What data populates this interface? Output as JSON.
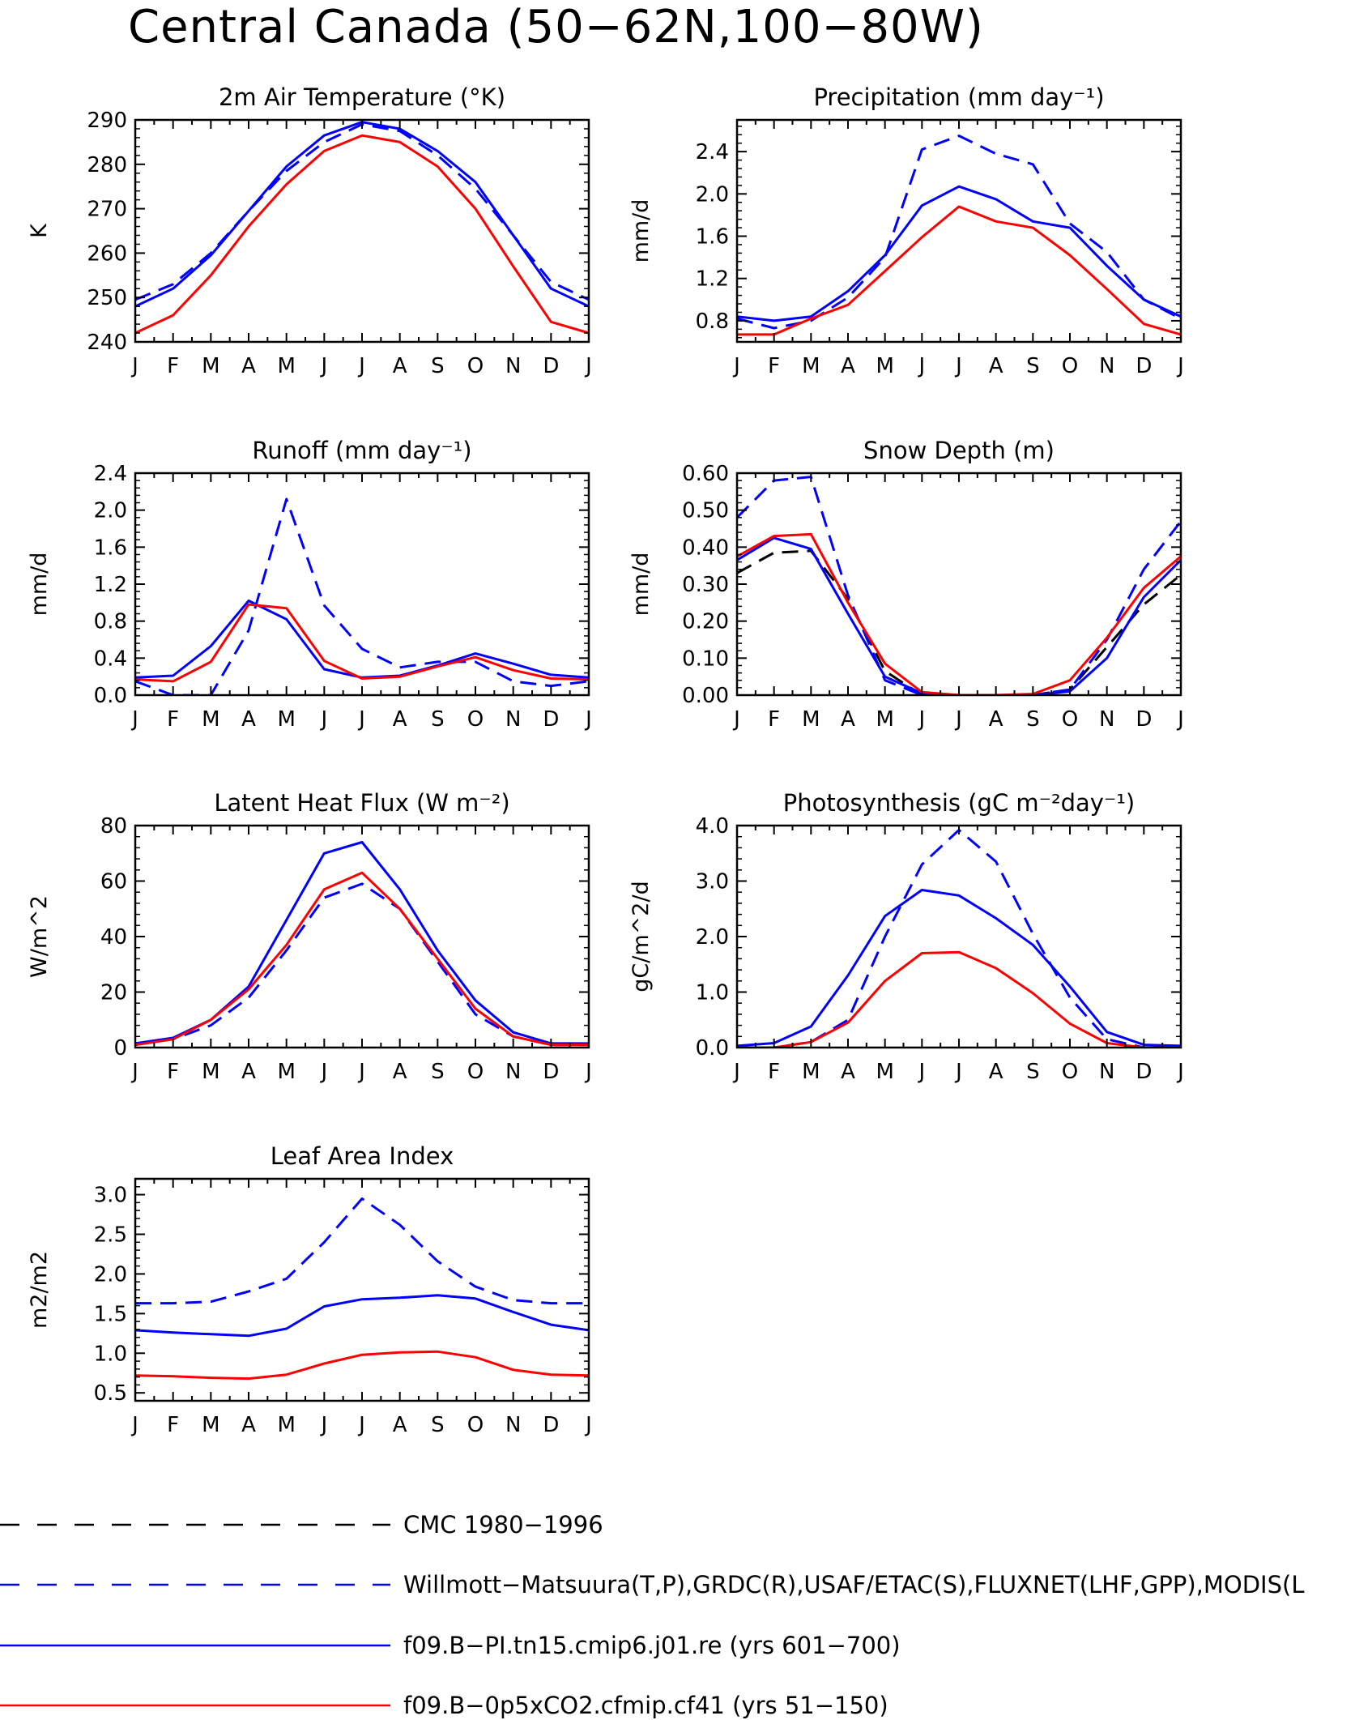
{
  "title": "Central Canada (50−62N,100−80W)",
  "months": [
    "J",
    "F",
    "M",
    "A",
    "M",
    "J",
    "J",
    "A",
    "S",
    "O",
    "N",
    "D",
    "J"
  ],
  "legend": [
    {
      "label": "CMC 1980−1996",
      "color": "#000000",
      "dash": true
    },
    {
      "label": "Willmott−Matsuura(T,P),GRDC(R),USAF/ETAC(S),FLUXNET(LHF,GPP),MODIS(L",
      "color": "#0000ff",
      "dash": true
    },
    {
      "label": "f09.B−PI.tn15.cmip6.j01.re (yrs 601−700)",
      "color": "#0000ff",
      "dash": false
    },
    {
      "label": "f09.B−0p5xCO2.cfmip.cf41 (yrs 51−150)",
      "color": "#ff0000",
      "dash": false
    }
  ],
  "chart_data": [
    {
      "type": "line",
      "id": "temperature",
      "title": "2m Air Temperature (°K)",
      "ylabel": "K",
      "ylim": [
        240,
        290
      ],
      "yticks": [
        "240",
        "250",
        "260",
        "270",
        "280",
        "290"
      ],
      "series": [
        {
          "name": "Willmott−Matsuura",
          "color": "#0000ff",
          "dashed": true,
          "values": [
            249.5,
            253,
            260,
            269.5,
            278.5,
            285,
            289,
            287.5,
            282,
            274.5,
            264,
            253.5,
            249.5
          ]
        },
        {
          "name": "f09.B−PI.tn15.cmip6.j01.re",
          "color": "#0000ff",
          "dashed": false,
          "values": [
            248,
            252,
            259.5,
            269.5,
            279.5,
            286.5,
            289.5,
            288,
            283,
            276,
            264,
            252,
            248
          ]
        },
        {
          "name": "f09.B−0p5xCO2.cfmip.cf41",
          "color": "#ff0000",
          "dashed": false,
          "values": [
            242,
            246,
            255,
            266,
            275.5,
            283,
            286.5,
            285,
            279.5,
            270,
            257,
            244.5,
            242
          ]
        }
      ]
    },
    {
      "type": "line",
      "id": "precipitation",
      "title": "Precipitation (mm day⁻¹)",
      "ylabel": "mm/d",
      "ylim": [
        0.6,
        2.7
      ],
      "yticks": [
        "0.8",
        "1.2",
        "1.6",
        "2.0",
        "2.4"
      ],
      "series": [
        {
          "name": "Willmott−Matsuura",
          "color": "#0000ff",
          "dashed": true,
          "values": [
            0.82,
            0.73,
            0.8,
            1.02,
            1.4,
            2.42,
            2.55,
            2.38,
            2.28,
            1.72,
            1.45,
            1.0,
            0.82
          ]
        },
        {
          "name": "f09.B−PI.tn15.cmip6.j01.re",
          "color": "#0000ff",
          "dashed": false,
          "values": [
            0.84,
            0.8,
            0.84,
            1.08,
            1.42,
            1.89,
            2.07,
            1.95,
            1.74,
            1.68,
            1.32,
            1.0,
            0.84
          ]
        },
        {
          "name": "f09.B−0p5xCO2.cfmip.cf41",
          "color": "#ff0000",
          "dashed": false,
          "values": [
            0.67,
            0.67,
            0.82,
            0.95,
            1.27,
            1.59,
            1.88,
            1.74,
            1.68,
            1.42,
            1.1,
            0.77,
            0.67
          ]
        }
      ]
    },
    {
      "type": "line",
      "id": "runoff",
      "title": "Runoff (mm day⁻¹)",
      "ylabel": "mm/d",
      "ylim": [
        0,
        2.4
      ],
      "yticks": [
        "0.0",
        "0.4",
        "0.8",
        "1.2",
        "1.6",
        "2.0",
        "2.4"
      ],
      "series": [
        {
          "name": "GRDC",
          "color": "#0000ff",
          "dashed": true,
          "values": [
            0.15,
            0.0,
            0.0,
            0.7,
            2.12,
            0.97,
            0.5,
            0.3,
            0.36,
            0.36,
            0.15,
            0.1,
            0.15
          ]
        },
        {
          "name": "f09.B−PI.tn15.cmip6.j01.re",
          "color": "#0000ff",
          "dashed": false,
          "values": [
            0.19,
            0.21,
            0.53,
            1.02,
            0.82,
            0.28,
            0.19,
            0.21,
            0.32,
            0.45,
            0.34,
            0.22,
            0.19
          ]
        },
        {
          "name": "f09.B−0p5xCO2.cfmip.cf41",
          "color": "#ff0000",
          "dashed": false,
          "values": [
            0.17,
            0.15,
            0.36,
            0.98,
            0.94,
            0.37,
            0.18,
            0.2,
            0.31,
            0.41,
            0.27,
            0.18,
            0.17
          ]
        }
      ]
    },
    {
      "type": "line",
      "id": "snow",
      "title": "Snow Depth (m)",
      "ylabel": "mm/d",
      "ylim": [
        0,
        0.6
      ],
      "yticks": [
        "0.00",
        "0.10",
        "0.20",
        "0.30",
        "0.40",
        "0.50",
        "0.60"
      ],
      "series": [
        {
          "name": "CMC 1980−1996",
          "color": "#000000",
          "dashed": true,
          "values": [
            0.33,
            0.385,
            0.39,
            0.26,
            0.065,
            0.0,
            0.0,
            0.0,
            0.0,
            0.015,
            0.13,
            0.245,
            0.325
          ]
        },
        {
          "name": "USAF/ETAC",
          "color": "#0000ff",
          "dashed": true,
          "values": [
            0.48,
            0.58,
            0.59,
            0.27,
            0.04,
            0.0,
            0.0,
            0.0,
            0.0,
            0.015,
            0.15,
            0.34,
            0.47
          ]
        },
        {
          "name": "f09.B−PI.tn15.cmip6.j01.re",
          "color": "#0000ff",
          "dashed": false,
          "values": [
            0.365,
            0.425,
            0.395,
            0.22,
            0.05,
            0.005,
            0.0,
            0.0,
            0.0,
            0.01,
            0.1,
            0.265,
            0.365
          ]
        },
        {
          "name": "f09.B−0p5xCO2.cfmip.cf41",
          "color": "#ff0000",
          "dashed": false,
          "values": [
            0.375,
            0.43,
            0.435,
            0.25,
            0.085,
            0.008,
            0.0,
            0.0,
            0.003,
            0.04,
            0.155,
            0.29,
            0.375
          ]
        }
      ]
    },
    {
      "type": "line",
      "id": "lhf",
      "title": "Latent Heat Flux (W m⁻²)",
      "ylabel": "W/m^2",
      "ylim": [
        0,
        80
      ],
      "yticks": [
        "0",
        "20",
        "40",
        "60",
        "80"
      ],
      "series": [
        {
          "name": "FLUXNET",
          "color": "#0000ff",
          "dashed": true,
          "values": [
            1,
            3,
            8,
            18,
            35,
            54,
            59,
            50,
            31,
            12,
            4,
            1,
            1
          ]
        },
        {
          "name": "f09.B−PI.tn15.cmip6.j01.re",
          "color": "#0000ff",
          "dashed": false,
          "values": [
            1.5,
            3.5,
            10,
            22,
            46,
            70,
            74,
            57,
            35,
            17,
            5.5,
            1.5,
            1.5
          ]
        },
        {
          "name": "f09.B−0p5xCO2.cfmip.cf41",
          "color": "#ff0000",
          "dashed": false,
          "values": [
            1,
            3,
            10,
            21,
            37,
            57,
            63,
            50,
            32,
            14,
            4,
            1,
            1
          ]
        }
      ]
    },
    {
      "type": "line",
      "id": "gpp",
      "title": "Photosynthesis (gC m⁻²day⁻¹)",
      "ylabel": "gC/m^2/d",
      "ylim": [
        0,
        4.0
      ],
      "yticks": [
        "0.0",
        "1.0",
        "2.0",
        "3.0",
        "4.0"
      ],
      "series": [
        {
          "name": "FLUXNET",
          "color": "#0000ff",
          "dashed": true,
          "values": [
            0.0,
            0.0,
            0.1,
            0.5,
            2.0,
            3.3,
            3.92,
            3.35,
            2.05,
            0.9,
            0.15,
            0.0,
            0.0
          ]
        },
        {
          "name": "f09.B−PI.tn15.cmip6.j01.re",
          "color": "#0000ff",
          "dashed": false,
          "values": [
            0.03,
            0.08,
            0.38,
            1.3,
            2.37,
            2.84,
            2.74,
            2.33,
            1.85,
            1.1,
            0.28,
            0.05,
            0.03
          ]
        },
        {
          "name": "f09.B−0p5xCO2.cfmip.cf41",
          "color": "#ff0000",
          "dashed": false,
          "values": [
            0.0,
            0.0,
            0.1,
            0.45,
            1.2,
            1.7,
            1.72,
            1.43,
            0.98,
            0.43,
            0.08,
            0.0,
            0.0
          ]
        }
      ]
    },
    {
      "type": "line",
      "id": "lai",
      "title": "Leaf Area Index",
      "ylabel": "m2/m2",
      "ylim": [
        0.4,
        3.2
      ],
      "yticks": [
        "0.5",
        "1.0",
        "1.5",
        "2.0",
        "2.5",
        "3.0"
      ],
      "series": [
        {
          "name": "MODIS",
          "color": "#0000ff",
          "dashed": true,
          "values": [
            1.63,
            1.63,
            1.65,
            1.78,
            1.94,
            2.4,
            2.95,
            2.62,
            2.16,
            1.84,
            1.67,
            1.63,
            1.63
          ]
        },
        {
          "name": "f09.B−PI.tn15.cmip6.j01.re",
          "color": "#0000ff",
          "dashed": false,
          "values": [
            1.29,
            1.26,
            1.24,
            1.22,
            1.31,
            1.59,
            1.68,
            1.7,
            1.73,
            1.69,
            1.52,
            1.36,
            1.29
          ]
        },
        {
          "name": "f09.B−0p5xCO2.cfmip.cf41",
          "color": "#ff0000",
          "dashed": false,
          "values": [
            0.72,
            0.71,
            0.69,
            0.68,
            0.73,
            0.87,
            0.98,
            1.01,
            1.02,
            0.95,
            0.79,
            0.73,
            0.72
          ]
        }
      ]
    }
  ]
}
